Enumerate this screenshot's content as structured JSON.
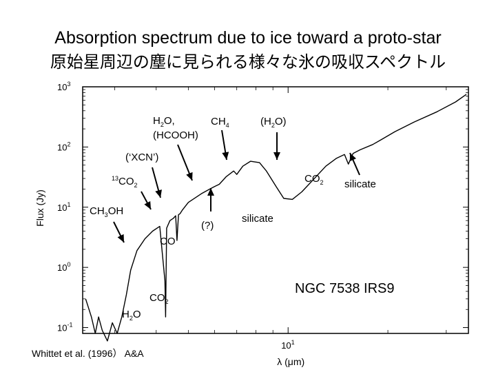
{
  "slide": {
    "title": "Absorption spectrum due to ice toward a proto-star",
    "subtitle": "原始星周辺の塵に見られる様々な氷の吸収スペクトル",
    "citation": "Whittet et al. (1996） A&A"
  },
  "chart_data": {
    "type": "line",
    "title": "",
    "xlabel": "λ (μm)",
    "ylabel": "Flux (Jy)",
    "x_scale": "log",
    "y_scale": "log",
    "xlim": [
      2.4,
      35
    ],
    "ylim": [
      0.08,
      1000
    ],
    "x_ticks": [
      {
        "base": "10",
        "exp": "1",
        "value": 10
      }
    ],
    "y_ticks": [
      {
        "base": "10",
        "exp": "3",
        "value": 1000
      },
      {
        "base": "10",
        "exp": "2",
        "value": 100
      },
      {
        "base": "10",
        "exp": "1",
        "value": 10
      },
      {
        "base": "10",
        "exp": "0",
        "value": 1
      },
      {
        "base": "10",
        "exp": "-1",
        "value": 0.1
      }
    ],
    "object_label": "NGC 7538  IRS9",
    "series": [
      {
        "x": [
          2.45,
          2.55,
          2.62,
          2.68,
          2.75,
          2.85,
          2.95,
          3.05,
          3.15,
          3.25,
          3.35,
          3.5,
          3.7,
          3.9,
          4.1,
          4.25,
          4.27,
          4.3,
          4.4,
          4.5,
          4.58,
          4.62,
          4.67,
          4.72,
          4.8,
          5.0,
          5.5,
          5.8,
          6.0,
          6.2,
          6.5,
          6.85,
          7.0,
          7.3,
          7.7,
          8.2,
          8.6,
          9.2,
          9.7,
          10.3,
          11.0,
          12.0,
          13.0,
          14.0,
          14.8,
          15.2,
          15.7,
          16.5,
          18.0,
          19.0,
          21.0,
          24.0,
          28.0,
          32.0,
          34.5
        ],
        "y": [
          0.3,
          0.15,
          0.08,
          0.15,
          0.09,
          0.06,
          0.12,
          0.08,
          0.15,
          0.35,
          0.9,
          1.9,
          3.0,
          4.0,
          4.8,
          0.6,
          0.15,
          4.5,
          6.0,
          6.5,
          7.2,
          2.8,
          7.5,
          7.8,
          9.0,
          12.0,
          17.0,
          20.0,
          22.0,
          24.0,
          32.0,
          40.0,
          35.0,
          48.0,
          58.0,
          55.0,
          40.0,
          22.0,
          14.0,
          13.5,
          18.0,
          30.0,
          48.0,
          65.0,
          75.0,
          52.0,
          78.0,
          90.0,
          110.0,
          130.0,
          180.0,
          260.0,
          380.0,
          560.0,
          750.0
        ]
      }
    ],
    "annotations": [
      {
        "parts": [
          {
            "t": "CH"
          },
          {
            "t": "3",
            "s": "sub"
          },
          {
            "t": "OH"
          }
        ],
        "arrow": "down"
      },
      {
        "parts": [
          {
            "t": "13",
            "s": "sup"
          },
          {
            "t": "CO"
          },
          {
            "t": "2",
            "s": "sub"
          }
        ],
        "arrow": "down"
      },
      {
        "parts": [
          {
            "t": "(‘XCN’)"
          }
        ],
        "arrow": "down"
      },
      {
        "parts": [
          {
            "t": "H"
          },
          {
            "t": "2",
            "s": "sub"
          },
          {
            "t": "O,"
          }
        ],
        "line2": [
          {
            "t": "(HCOOH)"
          }
        ],
        "arrow": "down"
      },
      {
        "parts": [
          {
            "t": "CH"
          },
          {
            "t": "4",
            "s": "sub"
          }
        ],
        "arrow": "down"
      },
      {
        "parts": [
          {
            "t": "(H"
          },
          {
            "t": "2",
            "s": "sub"
          },
          {
            "t": "O)"
          }
        ],
        "arrow": "down"
      },
      {
        "parts": [
          {
            "t": "(?)"
          }
        ],
        "arrow": "up"
      },
      {
        "parts": [
          {
            "t": "silicate"
          }
        ],
        "arrow": "none"
      },
      {
        "parts": [
          {
            "t": "CO"
          }
        ],
        "arrow": "none"
      },
      {
        "parts": [
          {
            "t": "CO"
          },
          {
            "t": "2",
            "s": "sub"
          }
        ],
        "arrow": "none"
      },
      {
        "parts": [
          {
            "t": "H"
          },
          {
            "t": "2",
            "s": "sub"
          },
          {
            "t": "O"
          }
        ],
        "arrow": "none"
      },
      {
        "parts": [
          {
            "t": "CO"
          },
          {
            "t": "2",
            "s": "sub"
          }
        ],
        "arrow": "none"
      },
      {
        "parts": [
          {
            "t": "silicate"
          }
        ],
        "arrow": "up"
      }
    ]
  }
}
